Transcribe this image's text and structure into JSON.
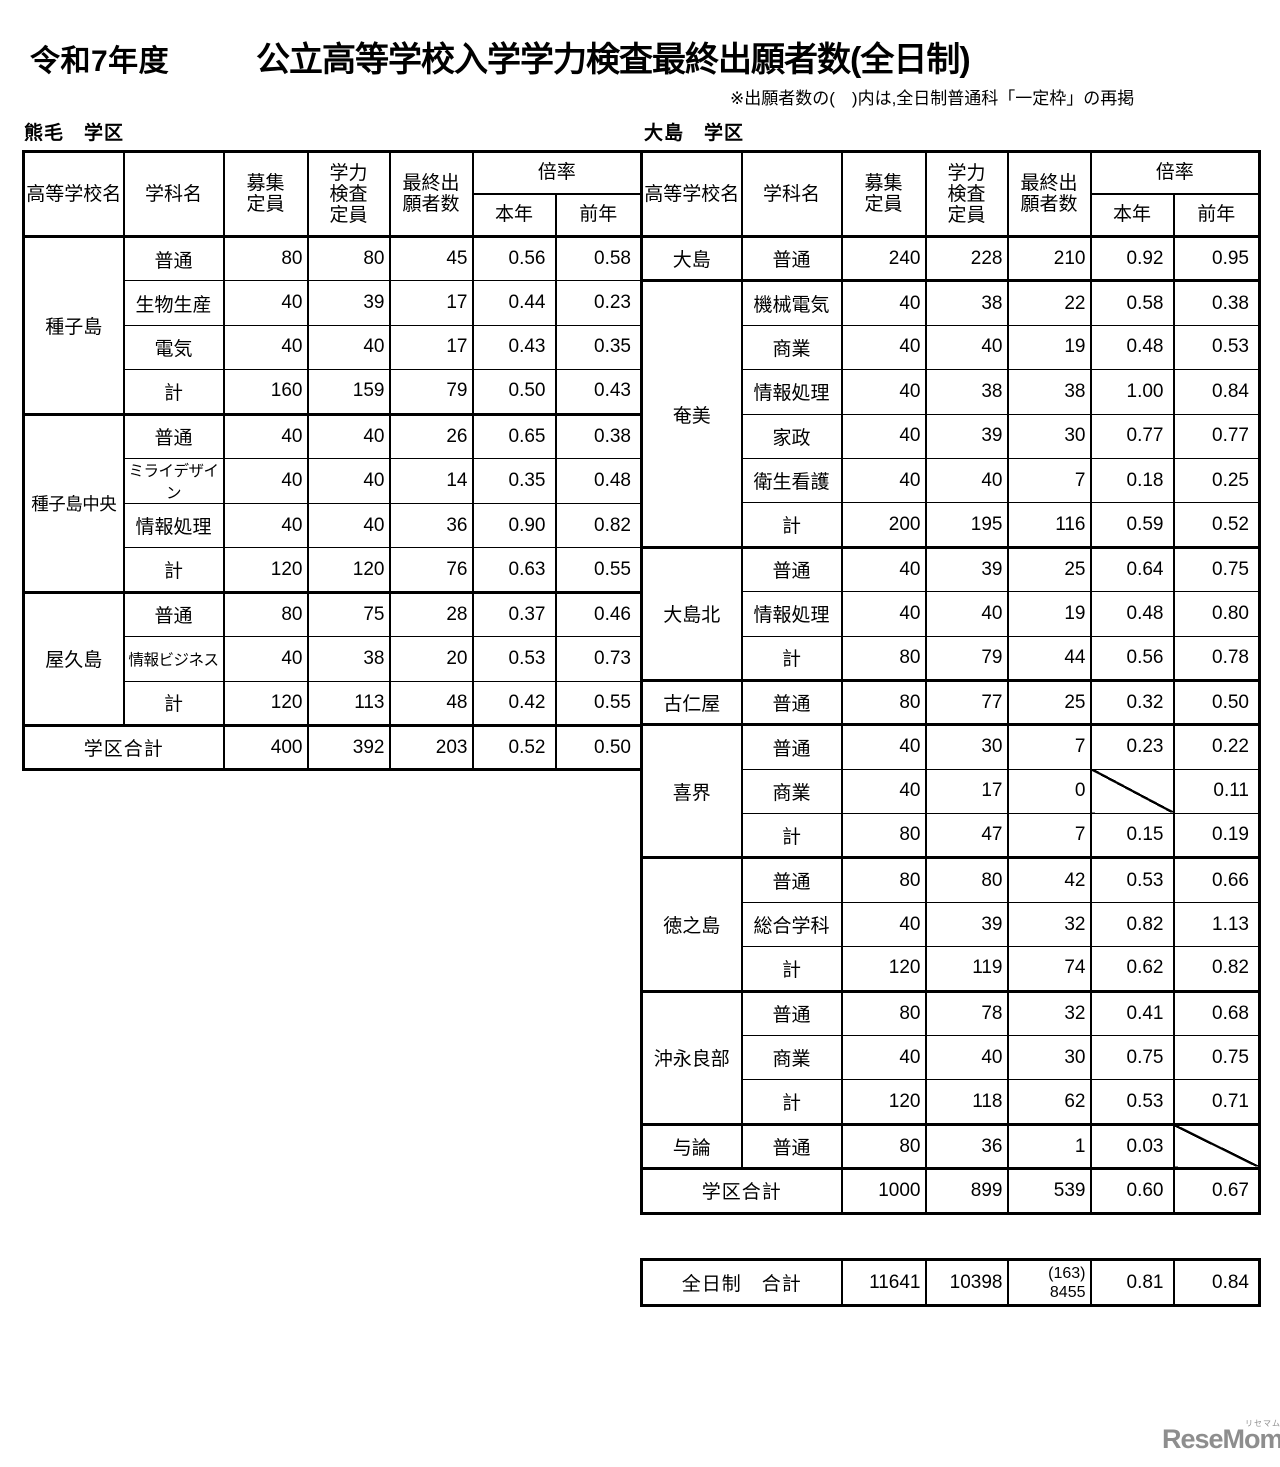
{
  "header": {
    "era": "令和7年度",
    "title": "公立高等学校入学学力検査最終出願者数(全日制)",
    "note": "※出願者数の(　)内は,全日制普通科「一定枠」の再掲"
  },
  "column_headers": {
    "school": "高等学校名",
    "dept": "学科名",
    "capacity": "募集\n定員",
    "exam": "学力\n検査\n定員",
    "applicants": "最終出\n願者数",
    "ratio": "倍率",
    "this_year": "本年",
    "prev_year": "前年"
  },
  "kumage_table": {
    "district_label": "熊毛　学区",
    "groups": [
      {
        "school": "種子島",
        "rows": [
          {
            "dept": "普通",
            "capacity": "80",
            "exam": "80",
            "applicants": "45",
            "this_year": "0.56",
            "prev_year": "0.58"
          },
          {
            "dept": "生物生産",
            "capacity": "40",
            "exam": "39",
            "applicants": "17",
            "this_year": "0.44",
            "prev_year": "0.23"
          },
          {
            "dept": "電気",
            "capacity": "40",
            "exam": "40",
            "applicants": "17",
            "this_year": "0.43",
            "prev_year": "0.35"
          },
          {
            "dept": "計",
            "capacity": "160",
            "exam": "159",
            "applicants": "79",
            "this_year": "0.50",
            "prev_year": "0.43"
          }
        ]
      },
      {
        "school": "種子島中央",
        "rows": [
          {
            "dept": "普通",
            "capacity": "40",
            "exam": "40",
            "applicants": "26",
            "this_year": "0.65",
            "prev_year": "0.38"
          },
          {
            "dept": "ミライデザイン",
            "capacity": "40",
            "exam": "40",
            "applicants": "14",
            "this_year": "0.35",
            "prev_year": "0.48"
          },
          {
            "dept": "情報処理",
            "capacity": "40",
            "exam": "40",
            "applicants": "36",
            "this_year": "0.90",
            "prev_year": "0.82"
          },
          {
            "dept": "計",
            "capacity": "120",
            "exam": "120",
            "applicants": "76",
            "this_year": "0.63",
            "prev_year": "0.55"
          }
        ]
      },
      {
        "school": "屋久島",
        "rows": [
          {
            "dept": "普通",
            "capacity": "80",
            "exam": "75",
            "applicants": "28",
            "this_year": "0.37",
            "prev_year": "0.46"
          },
          {
            "dept": "情報ビジネス",
            "capacity": "40",
            "exam": "38",
            "applicants": "20",
            "this_year": "0.53",
            "prev_year": "0.73"
          },
          {
            "dept": "計",
            "capacity": "120",
            "exam": "113",
            "applicants": "48",
            "this_year": "0.42",
            "prev_year": "0.55"
          }
        ]
      }
    ],
    "district_total": {
      "label": "学区合計",
      "capacity": "400",
      "exam": "392",
      "applicants": "203",
      "this_year": "0.52",
      "prev_year": "0.50"
    }
  },
  "oshima_table": {
    "district_label": "大島　学区",
    "groups": [
      {
        "school": "大島",
        "rows": [
          {
            "dept": "普通",
            "capacity": "240",
            "exam": "228",
            "applicants": "210",
            "this_year": "0.92",
            "prev_year": "0.95"
          }
        ]
      },
      {
        "school": "奄美",
        "rows": [
          {
            "dept": "機械電気",
            "capacity": "40",
            "exam": "38",
            "applicants": "22",
            "this_year": "0.58",
            "prev_year": "0.38"
          },
          {
            "dept": "商業",
            "capacity": "40",
            "exam": "40",
            "applicants": "19",
            "this_year": "0.48",
            "prev_year": "0.53"
          },
          {
            "dept": "情報処理",
            "capacity": "40",
            "exam": "38",
            "applicants": "38",
            "this_year": "1.00",
            "prev_year": "0.84"
          },
          {
            "dept": "家政",
            "capacity": "40",
            "exam": "39",
            "applicants": "30",
            "this_year": "0.77",
            "prev_year": "0.77"
          },
          {
            "dept": "衛生看護",
            "capacity": "40",
            "exam": "40",
            "applicants": "7",
            "this_year": "0.18",
            "prev_year": "0.25"
          },
          {
            "dept": "計",
            "capacity": "200",
            "exam": "195",
            "applicants": "116",
            "this_year": "0.59",
            "prev_year": "0.52"
          }
        ]
      },
      {
        "school": "大島北",
        "rows": [
          {
            "dept": "普通",
            "capacity": "40",
            "exam": "39",
            "applicants": "25",
            "this_year": "0.64",
            "prev_year": "0.75"
          },
          {
            "dept": "情報処理",
            "capacity": "40",
            "exam": "40",
            "applicants": "19",
            "this_year": "0.48",
            "prev_year": "0.80"
          },
          {
            "dept": "計",
            "capacity": "80",
            "exam": "79",
            "applicants": "44",
            "this_year": "0.56",
            "prev_year": "0.78"
          }
        ]
      },
      {
        "school": "古仁屋",
        "rows": [
          {
            "dept": "普通",
            "capacity": "80",
            "exam": "77",
            "applicants": "25",
            "this_year": "0.32",
            "prev_year": "0.50"
          }
        ]
      },
      {
        "school": "喜界",
        "rows": [
          {
            "dept": "普通",
            "capacity": "40",
            "exam": "30",
            "applicants": "7",
            "this_year": "0.23",
            "prev_year": "0.22"
          },
          {
            "dept": "商業",
            "capacity": "40",
            "exam": "17",
            "applicants": "0",
            "this_year": "",
            "prev_year": "0.11",
            "slash": "this_year"
          },
          {
            "dept": "計",
            "capacity": "80",
            "exam": "47",
            "applicants": "7",
            "this_year": "0.15",
            "prev_year": "0.19"
          }
        ]
      },
      {
        "school": "徳之島",
        "rows": [
          {
            "dept": "普通",
            "capacity": "80",
            "exam": "80",
            "applicants": "42",
            "this_year": "0.53",
            "prev_year": "0.66"
          },
          {
            "dept": "総合学科",
            "capacity": "40",
            "exam": "39",
            "applicants": "32",
            "this_year": "0.82",
            "prev_year": "1.13"
          },
          {
            "dept": "計",
            "capacity": "120",
            "exam": "119",
            "applicants": "74",
            "this_year": "0.62",
            "prev_year": "0.82"
          }
        ]
      },
      {
        "school": "沖永良部",
        "rows": [
          {
            "dept": "普通",
            "capacity": "80",
            "exam": "78",
            "applicants": "32",
            "this_year": "0.41",
            "prev_year": "0.68"
          },
          {
            "dept": "商業",
            "capacity": "40",
            "exam": "40",
            "applicants": "30",
            "this_year": "0.75",
            "prev_year": "0.75"
          },
          {
            "dept": "計",
            "capacity": "120",
            "exam": "118",
            "applicants": "62",
            "this_year": "0.53",
            "prev_year": "0.71"
          }
        ]
      },
      {
        "school": "与論",
        "rows": [
          {
            "dept": "普通",
            "capacity": "80",
            "exam": "36",
            "applicants": "1",
            "this_year": "0.03",
            "prev_year": "",
            "slash": "prev_year"
          }
        ]
      }
    ],
    "district_total": {
      "label": "学区合計",
      "capacity": "1000",
      "exam": "899",
      "applicants": "539",
      "this_year": "0.60",
      "prev_year": "0.67"
    }
  },
  "grand_total": {
    "label": "全日制　合計",
    "capacity": "11641",
    "exam": "10398",
    "applicants_note": "(163)",
    "applicants": "8455",
    "this_year": "0.81",
    "prev_year": "0.84"
  },
  "logo": {
    "text": "ReseMom.",
    "kana": "リセマム"
  }
}
